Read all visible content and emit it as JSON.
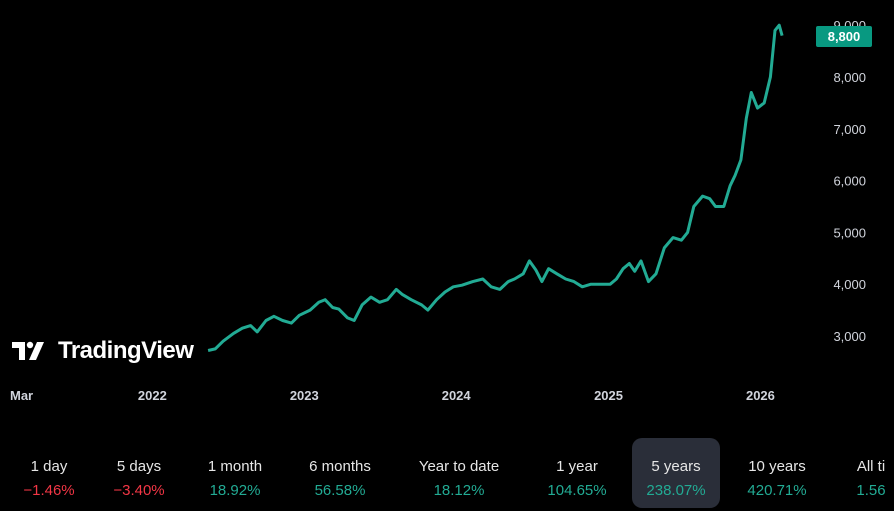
{
  "logo": {
    "text": "TradingView",
    "icon": "tradingview-logo-icon"
  },
  "price_badge": {
    "value": "8,800",
    "color": "#089981"
  },
  "line_color": "#22ab94",
  "chart_data": {
    "type": "line",
    "title": "",
    "xlabel": "",
    "ylabel": "",
    "x_ticks": [
      "Mar",
      "2022",
      "2023",
      "2024",
      "2025",
      "2026"
    ],
    "y_ticks": [
      "3,000",
      "4,000",
      "5,000",
      "6,000",
      "7,000",
      "8,000",
      "9,000"
    ],
    "ylim": [
      2200,
      9250
    ],
    "x_range": [
      "2021-03",
      "2026-03"
    ],
    "grid": false,
    "series": [
      {
        "name": "",
        "points": [
          [
            "2022-05-15",
            2720
          ],
          [
            "2022-06-01",
            2750
          ],
          [
            "2022-06-20",
            2900
          ],
          [
            "2022-07-15",
            3050
          ],
          [
            "2022-08-05",
            3150
          ],
          [
            "2022-08-25",
            3200
          ],
          [
            "2022-09-10",
            3080
          ],
          [
            "2022-10-01",
            3300
          ],
          [
            "2022-10-20",
            3380
          ],
          [
            "2022-11-10",
            3300
          ],
          [
            "2022-12-01",
            3250
          ],
          [
            "2022-12-20",
            3400
          ],
          [
            "2023-01-15",
            3500
          ],
          [
            "2023-02-05",
            3650
          ],
          [
            "2023-02-20",
            3700
          ],
          [
            "2023-03-10",
            3550
          ],
          [
            "2023-03-25",
            3520
          ],
          [
            "2023-04-15",
            3350
          ],
          [
            "2023-05-01",
            3300
          ],
          [
            "2023-05-20",
            3600
          ],
          [
            "2023-06-10",
            3750
          ],
          [
            "2023-07-01",
            3650
          ],
          [
            "2023-07-20",
            3700
          ],
          [
            "2023-08-10",
            3900
          ],
          [
            "2023-08-25",
            3800
          ],
          [
            "2023-09-15",
            3700
          ],
          [
            "2023-10-10",
            3600
          ],
          [
            "2023-10-25",
            3500
          ],
          [
            "2023-11-15",
            3700
          ],
          [
            "2023-12-05",
            3850
          ],
          [
            "2023-12-25",
            3950
          ],
          [
            "2024-01-15",
            3980
          ],
          [
            "2024-02-10",
            4050
          ],
          [
            "2024-03-05",
            4100
          ],
          [
            "2024-03-25",
            3950
          ],
          [
            "2024-04-15",
            3900
          ],
          [
            "2024-05-05",
            4050
          ],
          [
            "2024-05-20",
            4100
          ],
          [
            "2024-06-10",
            4200
          ],
          [
            "2024-06-25",
            4450
          ],
          [
            "2024-07-10",
            4280
          ],
          [
            "2024-07-25",
            4050
          ],
          [
            "2024-08-10",
            4300
          ],
          [
            "2024-08-30",
            4200
          ],
          [
            "2024-09-20",
            4100
          ],
          [
            "2024-10-10",
            4050
          ],
          [
            "2024-10-30",
            3950
          ],
          [
            "2024-11-20",
            4000
          ],
          [
            "2024-12-10",
            4000
          ],
          [
            "2025-01-05",
            4000
          ],
          [
            "2025-01-20",
            4100
          ],
          [
            "2025-02-05",
            4300
          ],
          [
            "2025-02-20",
            4400
          ],
          [
            "2025-03-05",
            4250
          ],
          [
            "2025-03-20",
            4450
          ],
          [
            "2025-04-07",
            4050
          ],
          [
            "2025-04-25",
            4200
          ],
          [
            "2025-05-15",
            4700
          ],
          [
            "2025-06-05",
            4900
          ],
          [
            "2025-06-25",
            4850
          ],
          [
            "2025-07-10",
            5000
          ],
          [
            "2025-07-25",
            5500
          ],
          [
            "2025-08-15",
            5700
          ],
          [
            "2025-09-01",
            5650
          ],
          [
            "2025-09-15",
            5500
          ],
          [
            "2025-10-05",
            5500
          ],
          [
            "2025-10-20",
            5900
          ],
          [
            "2025-11-01",
            6100
          ],
          [
            "2025-11-15",
            6400
          ],
          [
            "2025-11-28",
            7200
          ],
          [
            "2025-12-10",
            7700
          ],
          [
            "2025-12-25",
            7400
          ],
          [
            "2026-01-10",
            7500
          ],
          [
            "2026-01-25",
            8000
          ],
          [
            "2026-02-05",
            8900
          ],
          [
            "2026-02-15",
            9000
          ],
          [
            "2026-02-22",
            8800
          ]
        ]
      }
    ]
  },
  "periods": [
    {
      "label": "1 day",
      "value": "−1.46%",
      "trend": "neg"
    },
    {
      "label": "5 days",
      "value": "−3.40%",
      "trend": "neg"
    },
    {
      "label": "1 month",
      "value": "18.92%",
      "trend": "pos"
    },
    {
      "label": "6 months",
      "value": "56.58%",
      "trend": "pos"
    },
    {
      "label": "Year to date",
      "value": "18.12%",
      "trend": "pos"
    },
    {
      "label": "1 year",
      "value": "104.65%",
      "trend": "pos"
    },
    {
      "label": "5 years",
      "value": "238.07%",
      "trend": "pos",
      "active": true
    },
    {
      "label": "10 years",
      "value": "420.71%",
      "trend": "pos"
    },
    {
      "label": "All ti",
      "value": "1.56",
      "trend": "pos"
    }
  ]
}
